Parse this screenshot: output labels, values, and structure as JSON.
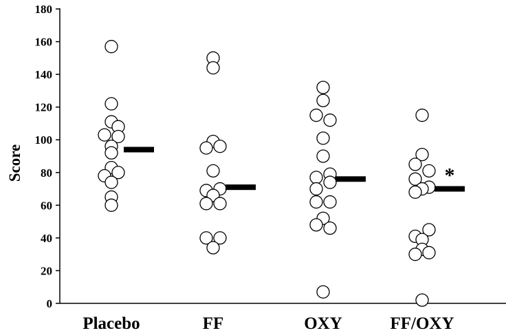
{
  "chart_data": {
    "type": "scatter",
    "title": "",
    "xlabel": "",
    "ylabel": "Score",
    "ylim": [
      0,
      180
    ],
    "yticks": [
      0,
      20,
      40,
      60,
      80,
      100,
      120,
      140,
      160,
      180
    ],
    "categories": [
      "Placebo",
      "FF",
      "OXY",
      "FF/OXY"
    ],
    "grid": false,
    "series": [
      {
        "category": "Placebo",
        "points": [
          {
            "slot": 0,
            "y": 157
          },
          {
            "slot": 0,
            "y": 122
          },
          {
            "slot": 0,
            "y": 111
          },
          {
            "slot": 1,
            "y": 108
          },
          {
            "slot": -1,
            "y": 103
          },
          {
            "slot": 1,
            "y": 102
          },
          {
            "slot": 0,
            "y": 96
          },
          {
            "slot": 0,
            "y": 92
          },
          {
            "slot": 0,
            "y": 83
          },
          {
            "slot": 1,
            "y": 80
          },
          {
            "slot": -1,
            "y": 78
          },
          {
            "slot": 0,
            "y": 74
          },
          {
            "slot": 0,
            "y": 65
          },
          {
            "slot": 0,
            "y": 60
          }
        ],
        "mean": 94
      },
      {
        "category": "FF",
        "points": [
          {
            "slot": 0,
            "y": 150
          },
          {
            "slot": 0,
            "y": 144
          },
          {
            "slot": 0,
            "y": 99
          },
          {
            "slot": 1,
            "y": 96
          },
          {
            "slot": -1,
            "y": 95
          },
          {
            "slot": 0,
            "y": 81
          },
          {
            "slot": 1,
            "y": 70
          },
          {
            "slot": -1,
            "y": 69
          },
          {
            "slot": 0,
            "y": 66
          },
          {
            "slot": -1,
            "y": 61
          },
          {
            "slot": 1,
            "y": 61
          },
          {
            "slot": -1,
            "y": 40
          },
          {
            "slot": 1,
            "y": 40
          },
          {
            "slot": 0,
            "y": 34
          }
        ],
        "mean": 71
      },
      {
        "category": "OXY",
        "points": [
          {
            "slot": 0,
            "y": 132
          },
          {
            "slot": 0,
            "y": 124
          },
          {
            "slot": -1,
            "y": 115
          },
          {
            "slot": 1,
            "y": 112
          },
          {
            "slot": 0,
            "y": 101
          },
          {
            "slot": 0,
            "y": 90
          },
          {
            "slot": 1,
            "y": 79
          },
          {
            "slot": -1,
            "y": 77
          },
          {
            "slot": 1,
            "y": 74
          },
          {
            "slot": -1,
            "y": 70
          },
          {
            "slot": -1,
            "y": 62
          },
          {
            "slot": 1,
            "y": 62
          },
          {
            "slot": 0,
            "y": 52
          },
          {
            "slot": -1,
            "y": 48
          },
          {
            "slot": 1,
            "y": 46
          },
          {
            "slot": 0,
            "y": 7
          }
        ],
        "mean": 76
      },
      {
        "category": "FF/OXY",
        "points": [
          {
            "slot": 0,
            "y": 115
          },
          {
            "slot": 0,
            "y": 91
          },
          {
            "slot": -1,
            "y": 85
          },
          {
            "slot": 1,
            "y": 81
          },
          {
            "slot": -1,
            "y": 76
          },
          {
            "slot": 1,
            "y": 71
          },
          {
            "slot": 0,
            "y": 70
          },
          {
            "slot": -1,
            "y": 68
          },
          {
            "slot": 1,
            "y": 45
          },
          {
            "slot": -1,
            "y": 41
          },
          {
            "slot": 0,
            "y": 39
          },
          {
            "slot": 0,
            "y": 33
          },
          {
            "slot": 1,
            "y": 31
          },
          {
            "slot": -1,
            "y": 30
          },
          {
            "slot": 0,
            "y": 2
          }
        ],
        "mean": 70,
        "annotation": "*"
      }
    ]
  }
}
